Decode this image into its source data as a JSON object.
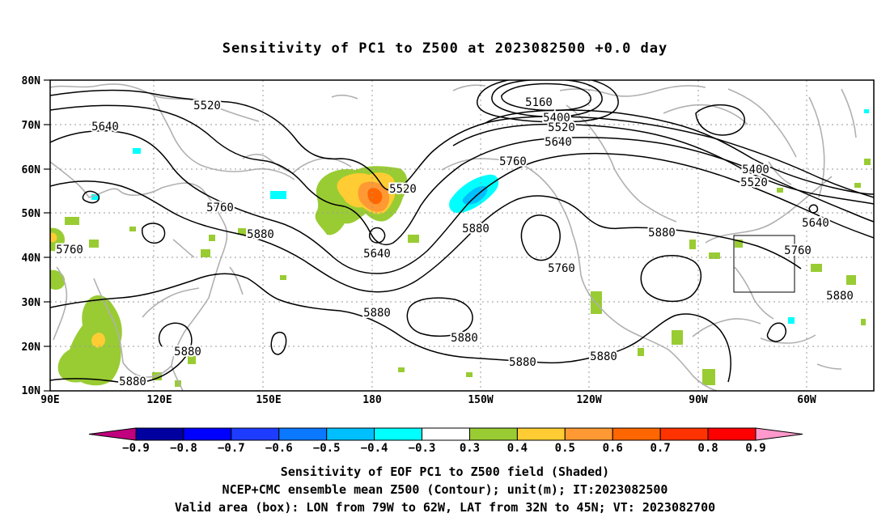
{
  "title": "Sensitivity of PC1 to Z500 at 2023082500 +0.0 day",
  "lat_labels": [
    "80N",
    "70N",
    "60N",
    "50N",
    "40N",
    "30N",
    "20N",
    "10N"
  ],
  "lon_labels": [
    "90E",
    "120E",
    "150E",
    "180",
    "150W",
    "120W",
    "90W",
    "60W"
  ],
  "contour_labels": [
    "5520",
    "5640",
    "5760",
    "5880",
    "5160",
    "5400",
    "5520",
    "5640",
    "5760",
    "5880",
    "5640",
    "5520",
    "5760",
    "5880",
    "5760",
    "5880",
    "5400",
    "5520",
    "5640",
    "5760",
    "5880",
    "5880",
    "5880",
    "5880",
    "5880",
    "5880",
    "5880"
  ],
  "colorbar": {
    "colors": [
      "#c0007e",
      "#0000a0",
      "#0000ff",
      "#1e3cff",
      "#0a78ff",
      "#00bfff",
      "#00ffff",
      "#ffffff",
      "#99cc33",
      "#ffcc33",
      "#ff9933",
      "#ff6600",
      "#ff3300",
      "#ff0000",
      "#ff99cc"
    ],
    "labels": [
      "−0.9",
      "−0.8",
      "−0.7",
      "−0.6",
      "−0.5",
      "−0.4",
      "−0.3",
      "0.3",
      "0.4",
      "0.5",
      "0.6",
      "0.7",
      "0.8",
      "0.9"
    ]
  },
  "captions": [
    "Sensitivity of EOF PC1 to Z500 field (Shaded)",
    "NCEP+CMC ensemble mean Z500 (Contour); unit(m); IT:2023082500",
    "Valid area (box): LON from 79W to 62W, LAT from 32N to 45N; VT: 2023082700"
  ],
  "valid_box": {
    "lon_west": -79,
    "lon_east": -62,
    "lat_south": 32,
    "lat_north": 45
  }
}
